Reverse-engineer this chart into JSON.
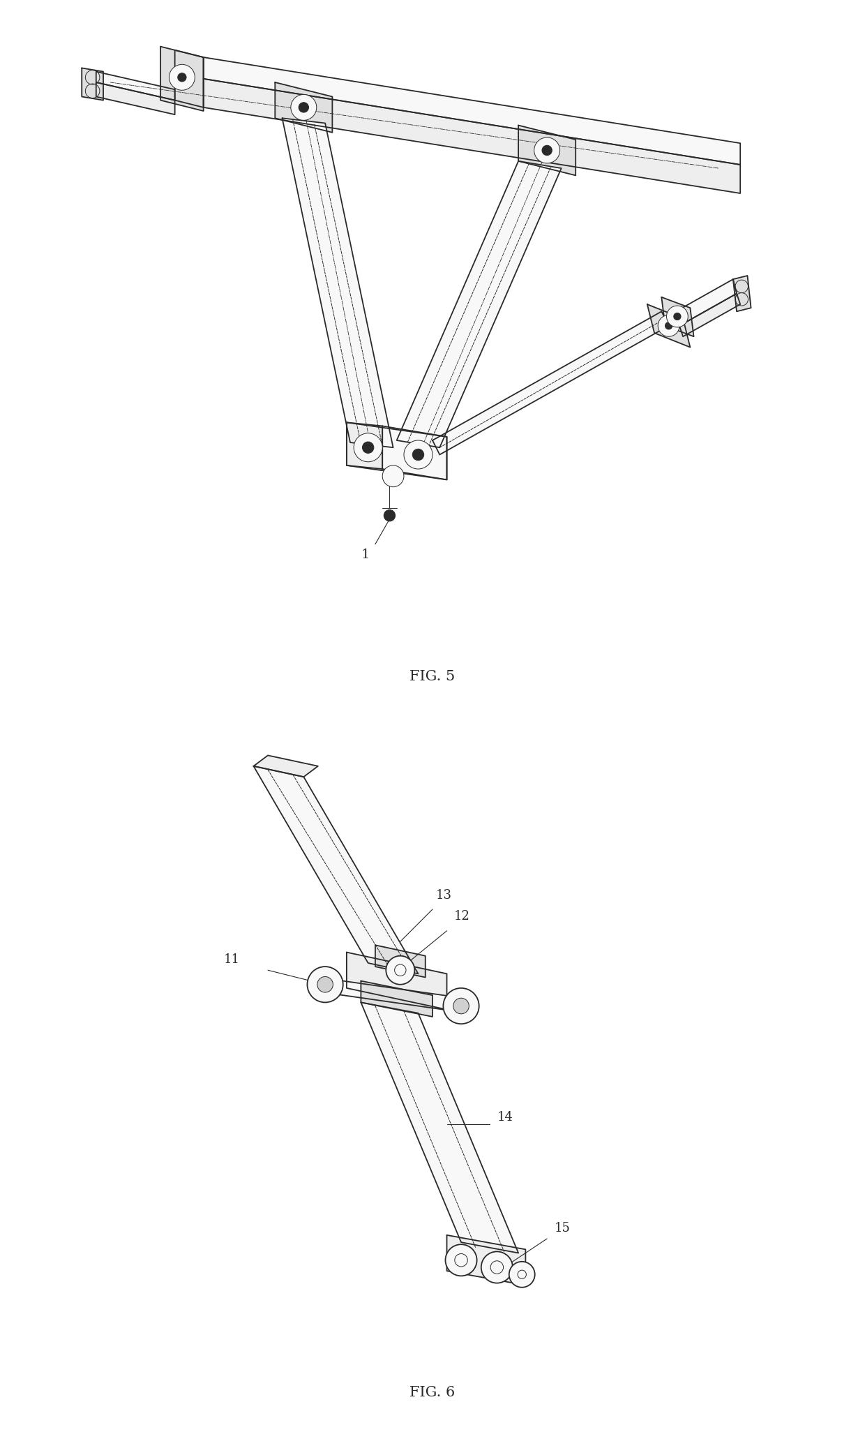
{
  "fig5_label": "FIG. 5",
  "fig6_label": "FIG. 6",
  "label1": "1",
  "label11": "11",
  "label12": "12",
  "label13": "13",
  "label14": "14",
  "label15": "15",
  "bg_color": "#ffffff",
  "line_color": "#2a2a2a",
  "fill_light": "#f8f8f8",
  "fill_mid": "#eeeeee",
  "fill_dark": "#e0e0e0",
  "line_width": 1.3,
  "thin_line": 0.7,
  "font_size_label": 13,
  "font_size_fig": 15
}
